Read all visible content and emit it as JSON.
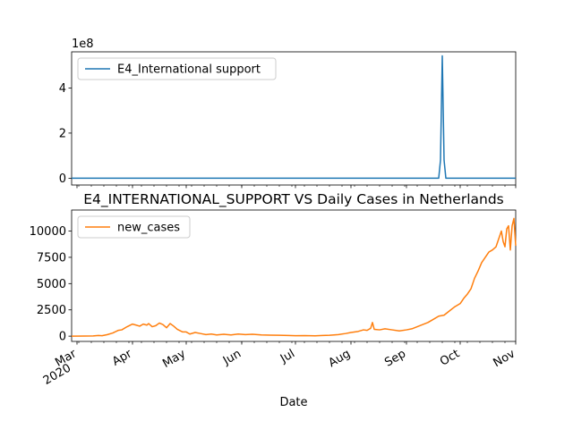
{
  "chart_data": [
    {
      "type": "line",
      "title": "",
      "xlabel": "",
      "ylabel": "",
      "offset_label": "1e8",
      "ylim": [
        -0.3,
        5.6
      ],
      "yticks": [
        0,
        2,
        4
      ],
      "ytick_labels": [
        "0",
        "2",
        "4"
      ],
      "legend": {
        "placement": "upper left"
      },
      "grid": false,
      "series": [
        {
          "name": "E4_International support",
          "color": "#1f77b4",
          "points": [
            [
              "2020-02-27",
              0
            ],
            [
              "2020-09-19",
              0
            ],
            [
              "2020-09-20",
              0.8
            ],
            [
              "2020-09-21",
              5.42
            ],
            [
              "2020-09-22",
              0.8
            ],
            [
              "2020-09-23",
              0
            ],
            [
              "2020-11-01",
              0
            ]
          ]
        }
      ]
    },
    {
      "type": "line",
      "title": "E4_INTERNATIONAL_SUPPORT VS Daily Cases in Netherlands",
      "xlabel": "Date",
      "ylabel": "",
      "ylim": [
        -500,
        12000
      ],
      "yticks": [
        0,
        2500,
        5000,
        7500,
        10000
      ],
      "ytick_labels": [
        "0",
        "2500",
        "5000",
        "7500",
        "10000"
      ],
      "xlim": [
        "2020-02-27",
        "2020-11-01"
      ],
      "xticks": [
        {
          "date": "2020-03-01",
          "label": "Mar",
          "sub": "2020"
        },
        {
          "date": "2020-04-01",
          "label": "Apr",
          "sub": ""
        },
        {
          "date": "2020-05-01",
          "label": "May",
          "sub": ""
        },
        {
          "date": "2020-06-01",
          "label": "Jun",
          "sub": ""
        },
        {
          "date": "2020-07-01",
          "label": "Jul",
          "sub": ""
        },
        {
          "date": "2020-08-01",
          "label": "Aug",
          "sub": ""
        },
        {
          "date": "2020-09-01",
          "label": "Sep",
          "sub": ""
        },
        {
          "date": "2020-10-01",
          "label": "Oct",
          "sub": ""
        },
        {
          "date": "2020-11-01",
          "label": "Nov",
          "sub": ""
        }
      ],
      "legend": {
        "placement": "upper left"
      },
      "grid": false,
      "series": [
        {
          "name": "new_cases",
          "color": "#ff7f0e",
          "points": [
            [
              "2020-02-27",
              0
            ],
            [
              "2020-03-05",
              5
            ],
            [
              "2020-03-10",
              20
            ],
            [
              "2020-03-13",
              60
            ],
            [
              "2020-03-15",
              40
            ],
            [
              "2020-03-18",
              150
            ],
            [
              "2020-03-21",
              300
            ],
            [
              "2020-03-24",
              550
            ],
            [
              "2020-03-26",
              600
            ],
            [
              "2020-03-29",
              900
            ],
            [
              "2020-04-01",
              1150
            ],
            [
              "2020-04-03",
              1050
            ],
            [
              "2020-04-05",
              950
            ],
            [
              "2020-04-07",
              1150
            ],
            [
              "2020-04-09",
              1050
            ],
            [
              "2020-04-10",
              1200
            ],
            [
              "2020-04-12",
              900
            ],
            [
              "2020-04-14",
              1000
            ],
            [
              "2020-04-16",
              1250
            ],
            [
              "2020-04-18",
              1100
            ],
            [
              "2020-04-20",
              800
            ],
            [
              "2020-04-22",
              1200
            ],
            [
              "2020-04-24",
              950
            ],
            [
              "2020-04-26",
              650
            ],
            [
              "2020-04-29",
              400
            ],
            [
              "2020-05-01",
              400
            ],
            [
              "2020-05-03",
              200
            ],
            [
              "2020-05-06",
              350
            ],
            [
              "2020-05-09",
              250
            ],
            [
              "2020-05-12",
              150
            ],
            [
              "2020-05-15",
              200
            ],
            [
              "2020-05-18",
              120
            ],
            [
              "2020-05-22",
              180
            ],
            [
              "2020-05-26",
              120
            ],
            [
              "2020-05-30",
              200
            ],
            [
              "2020-06-03",
              150
            ],
            [
              "2020-06-07",
              180
            ],
            [
              "2020-06-12",
              120
            ],
            [
              "2020-06-17",
              100
            ],
            [
              "2020-06-22",
              80
            ],
            [
              "2020-06-27",
              60
            ],
            [
              "2020-07-01",
              40
            ],
            [
              "2020-07-06",
              50
            ],
            [
              "2020-07-12",
              30
            ],
            [
              "2020-07-16",
              60
            ],
            [
              "2020-07-20",
              80
            ],
            [
              "2020-07-25",
              150
            ],
            [
              "2020-07-29",
              250
            ],
            [
              "2020-08-01",
              350
            ],
            [
              "2020-08-05",
              450
            ],
            [
              "2020-08-08",
              600
            ],
            [
              "2020-08-10",
              550
            ],
            [
              "2020-08-12",
              750
            ],
            [
              "2020-08-13",
              1300
            ],
            [
              "2020-08-14",
              650
            ],
            [
              "2020-08-17",
              600
            ],
            [
              "2020-08-20",
              700
            ],
            [
              "2020-08-24",
              600
            ],
            [
              "2020-08-28",
              500
            ],
            [
              "2020-09-01",
              600
            ],
            [
              "2020-09-04",
              700
            ],
            [
              "2020-09-07",
              900
            ],
            [
              "2020-09-10",
              1100
            ],
            [
              "2020-09-13",
              1300
            ],
            [
              "2020-09-16",
              1600
            ],
            [
              "2020-09-19",
              1900
            ],
            [
              "2020-09-22",
              2000
            ],
            [
              "2020-09-25",
              2400
            ],
            [
              "2020-09-28",
              2800
            ],
            [
              "2020-10-01",
              3100
            ],
            [
              "2020-10-03",
              3600
            ],
            [
              "2020-10-05",
              4000
            ],
            [
              "2020-10-07",
              4500
            ],
            [
              "2020-10-09",
              5500
            ],
            [
              "2020-10-11",
              6200
            ],
            [
              "2020-10-13",
              7000
            ],
            [
              "2020-10-15",
              7500
            ],
            [
              "2020-10-17",
              8000
            ],
            [
              "2020-10-19",
              8200
            ],
            [
              "2020-10-21",
              8500
            ],
            [
              "2020-10-23",
              9500
            ],
            [
              "2020-10-24",
              10000
            ],
            [
              "2020-10-25",
              9000
            ],
            [
              "2020-10-26",
              8500
            ],
            [
              "2020-10-27",
              10200
            ],
            [
              "2020-10-28",
              10500
            ],
            [
              "2020-10-29",
              8200
            ],
            [
              "2020-10-30",
              10500
            ],
            [
              "2020-10-31",
              11200
            ],
            [
              "2020-11-01",
              8600
            ]
          ]
        }
      ]
    }
  ]
}
